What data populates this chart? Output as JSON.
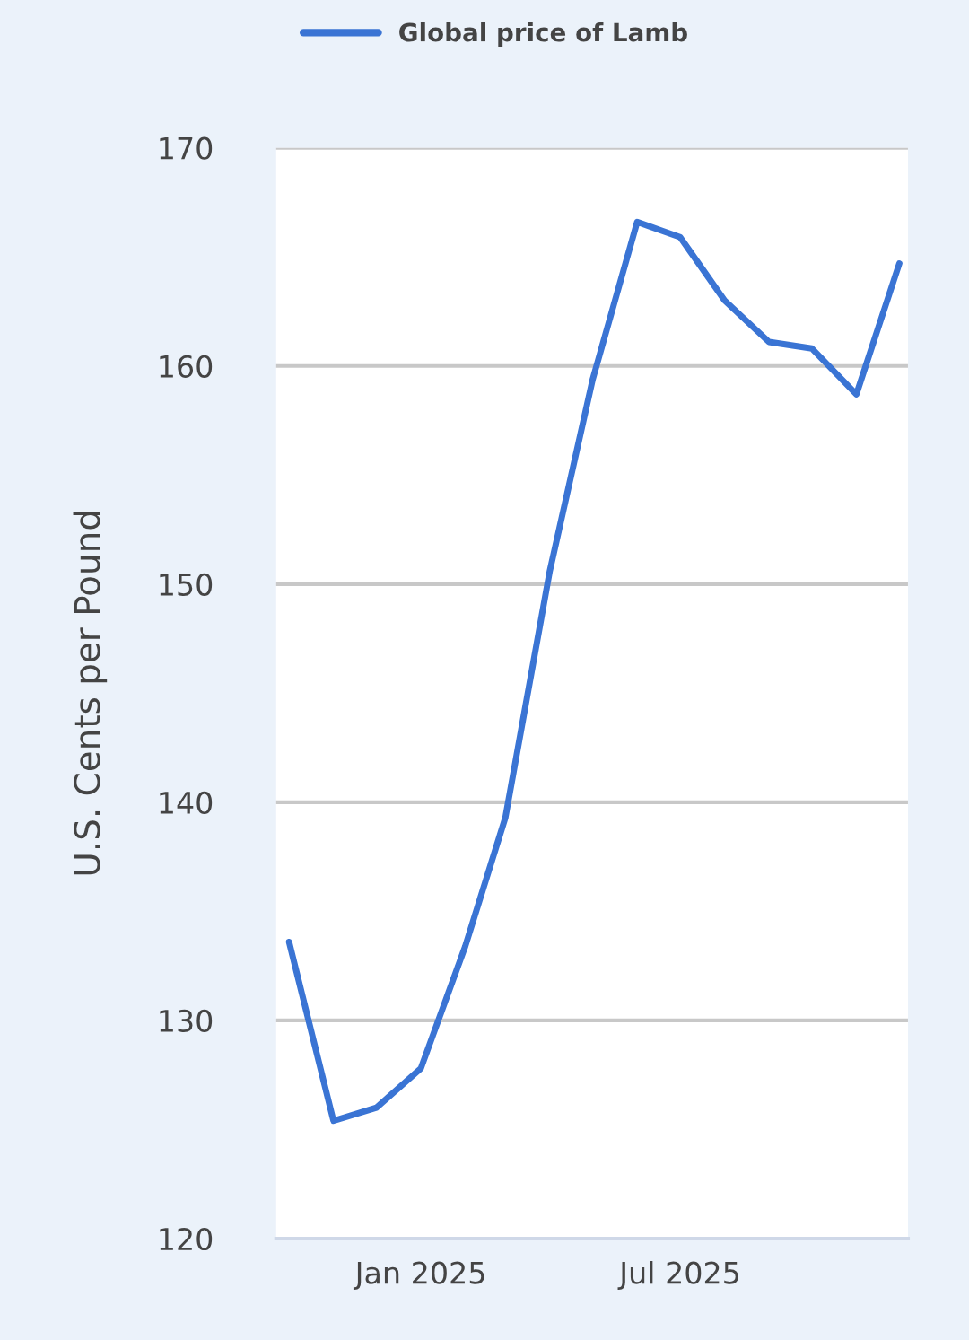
{
  "chart_data": {
    "type": "line",
    "ylabel": "U.S. Cents per Pound",
    "x": [
      "2024-10",
      "2024-11",
      "2024-12",
      "2025-01",
      "2025-02",
      "2025-03",
      "2025-04",
      "2025-05",
      "2025-06",
      "2025-07",
      "2025-08",
      "2025-09",
      "2025-10",
      "2025-11",
      "2025-12"
    ],
    "series": [
      {
        "name": "Global price of Lamb",
        "color": "#3a74d4",
        "values": [
          133.6,
          125.4,
          126.0,
          127.8,
          133.4,
          139.3,
          150.6,
          159.4,
          166.6,
          165.9,
          163.0,
          161.1,
          160.8,
          158.7,
          164.7
        ]
      }
    ],
    "xlim": [
      "2024-09-22",
      "2025-12-07"
    ],
    "xticks": [
      {
        "value": "2025-01-01",
        "label": "Jan 2025"
      },
      {
        "value": "2025-07-01",
        "label": "Jul 2025"
      }
    ],
    "ylim": [
      120,
      170
    ],
    "yticks": [
      120,
      130,
      140,
      150,
      160,
      170
    ],
    "grid": "y",
    "legend": "top left",
    "marker": "none",
    "line_style": "solid"
  }
}
